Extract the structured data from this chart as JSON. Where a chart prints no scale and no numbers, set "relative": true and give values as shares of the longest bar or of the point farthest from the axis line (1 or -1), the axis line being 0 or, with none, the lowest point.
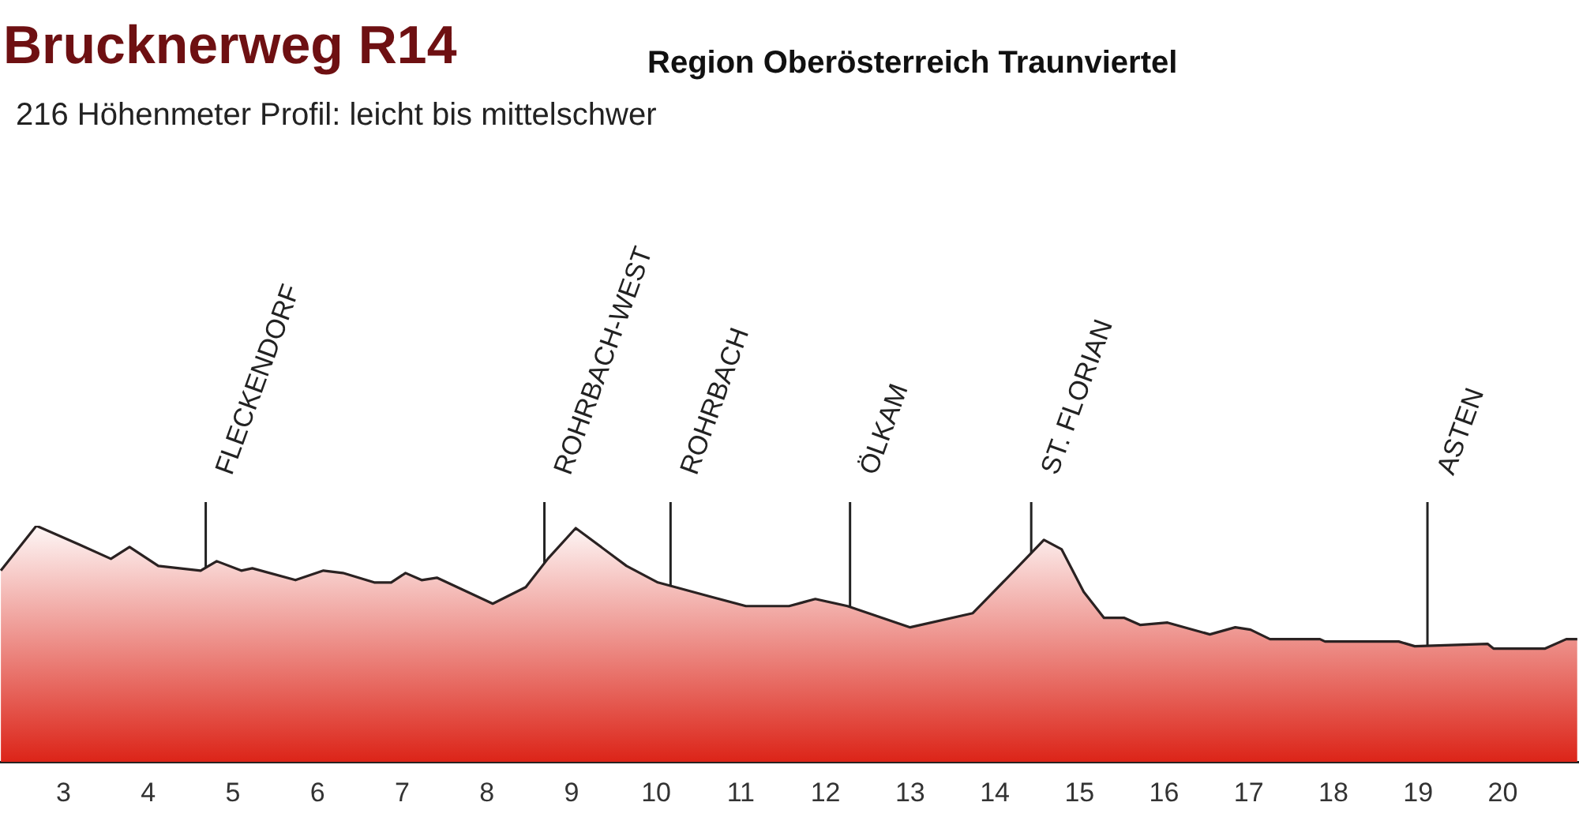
{
  "chart_data": {
    "type": "area",
    "title": "Brucknerweg R14",
    "subtitle": "Region Oberösterreich Traunviertel",
    "annotations": [
      "216 Höhenmeter  Profil: leicht bis mittelschwer"
    ],
    "relative": true,
    "xlim": [
      2.25,
      20.9
    ],
    "xticks": [
      3,
      4,
      5,
      6,
      7,
      8,
      9,
      10,
      11,
      12,
      13,
      14,
      15,
      16,
      17,
      18,
      19,
      20
    ],
    "series": [
      {
        "color": "#dc2418",
        "x": [
          2.26,
          2.68,
          3.19,
          3.56,
          3.78,
          4.12,
          4.62,
          4.81,
          5.1,
          5.23,
          5.74,
          6.07,
          6.3,
          6.67,
          6.87,
          7.04,
          7.23,
          7.41,
          8.07,
          8.46,
          8.72,
          9.05,
          9.65,
          10.02,
          10.64,
          11.06,
          11.57,
          11.88,
          12.26,
          13.0,
          13.74,
          14.23,
          14.58,
          14.79,
          15.05,
          15.29,
          15.53,
          15.72,
          16.04,
          16.54,
          16.84,
          17.02,
          17.25,
          17.84,
          17.9,
          18.77,
          18.96,
          19.82,
          19.89,
          20.5,
          20.75,
          20.88
        ],
        "values": [
          0.81,
          1.0,
          0.92,
          0.86,
          0.91,
          0.83,
          0.81,
          0.85,
          0.81,
          0.82,
          0.77,
          0.81,
          0.8,
          0.76,
          0.76,
          0.8,
          0.77,
          0.78,
          0.67,
          0.74,
          0.86,
          0.99,
          0.83,
          0.76,
          0.7,
          0.66,
          0.66,
          0.69,
          0.66,
          0.57,
          0.63,
          0.81,
          0.94,
          0.9,
          0.72,
          0.61,
          0.61,
          0.58,
          0.59,
          0.54,
          0.57,
          0.56,
          0.52,
          0.52,
          0.51,
          0.51,
          0.49,
          0.5,
          0.48,
          0.48,
          0.52,
          0.52
        ]
      }
    ],
    "ref_lines": [
      {
        "axis": "x",
        "value": 4.68,
        "label": "FLECKENDORF"
      },
      {
        "axis": "x",
        "value": 8.68,
        "label": "ROHRBACH-WEST"
      },
      {
        "axis": "x",
        "value": 10.17,
        "label": "ROHRBACH"
      },
      {
        "axis": "x",
        "value": 12.29,
        "label": "ÖLKAM"
      },
      {
        "axis": "x",
        "value": 14.43,
        "label": "ST. FLORIAN"
      },
      {
        "axis": "x",
        "value": 19.11,
        "label": "ASTEN"
      }
    ]
  }
}
